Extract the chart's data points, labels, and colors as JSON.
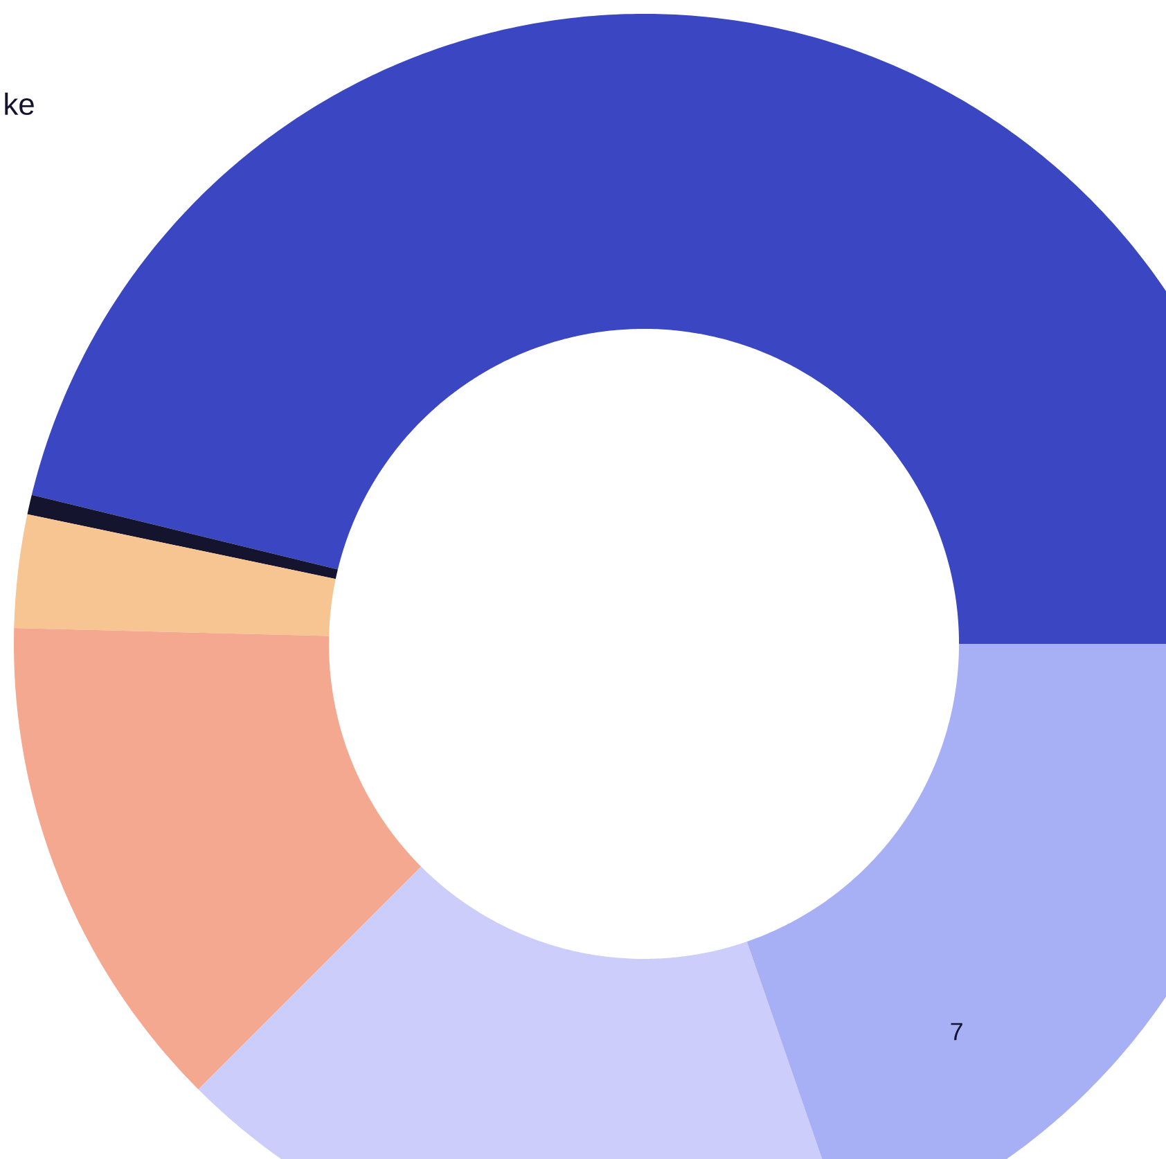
{
  "chart_data": {
    "type": "donut",
    "categories": [
      null,
      null,
      null,
      null,
      null,
      null
    ],
    "values": [
      46.2,
      0.5,
      2.9,
      12.9,
      17.8,
      19.7
    ],
    "colors": [
      "#3b47c2",
      "#14142e",
      "#f7c591",
      "#f3a88f",
      "#cccdfa",
      "#a7aff5"
    ],
    "annotations": [
      "ke",
      "7"
    ]
  }
}
